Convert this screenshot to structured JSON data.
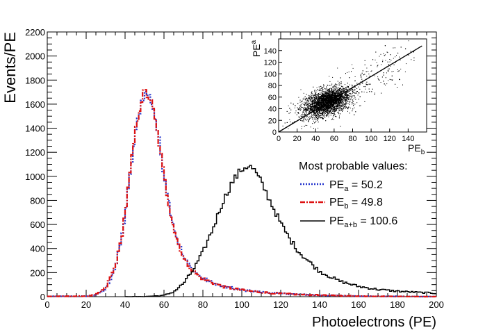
{
  "chart_data": [
    {
      "type": "line",
      "title": "",
      "xlabel": "Photoelectrons (PE)",
      "ylabel": "Events/PE",
      "xlim": [
        0,
        200
      ],
      "ylim": [
        0,
        2200
      ],
      "x_ticks": [
        "0",
        "20",
        "40",
        "60",
        "80",
        "100",
        "120",
        "140",
        "160",
        "180",
        "200"
      ],
      "y_ticks": [
        "0",
        "200",
        "400",
        "600",
        "800",
        "1000",
        "1200",
        "1400",
        "1600",
        "1800",
        "2000",
        "2200"
      ],
      "x": [
        0,
        20,
        25,
        30,
        35,
        38,
        40,
        42,
        44,
        46,
        48,
        50,
        52,
        54,
        56,
        58,
        60,
        63,
        66,
        70,
        75,
        80,
        90,
        100,
        110,
        120,
        130,
        140,
        150,
        160,
        170,
        180,
        190,
        200
      ],
      "series": [
        {
          "name": "PE_a = 50.2",
          "color": "#2233cc",
          "style": "dotted",
          "values": [
            2,
            4,
            12,
            65,
            240,
            460,
            680,
            930,
            1190,
            1420,
            1600,
            1690,
            1680,
            1600,
            1440,
            1240,
            1020,
            740,
            520,
            330,
            215,
            150,
            85,
            55,
            38,
            26,
            18,
            12,
            8,
            5,
            3,
            2,
            1,
            0
          ]
        },
        {
          "name": "PE_b = 49.8",
          "color": "#dd1111",
          "style": "dashdot",
          "values": [
            2,
            4,
            14,
            70,
            250,
            470,
            700,
            950,
            1210,
            1440,
            1620,
            1700,
            1670,
            1580,
            1420,
            1220,
            1000,
            720,
            505,
            320,
            210,
            148,
            84,
            54,
            37,
            25,
            17,
            12,
            8,
            5,
            3,
            2,
            1,
            0
          ]
        },
        {
          "name": "PE_a+b = 100.6",
          "color": "#000000",
          "style": "solid",
          "x": [
            40,
            50,
            60,
            65,
            70,
            75,
            80,
            85,
            90,
            95,
            100,
            103,
            106,
            110,
            115,
            120,
            125,
            130,
            140,
            150,
            160,
            170,
            180,
            190,
            200
          ],
          "values": [
            0,
            1,
            10,
            40,
            110,
            220,
            370,
            560,
            780,
            950,
            1060,
            1090,
            1060,
            950,
            780,
            610,
            470,
            360,
            210,
            130,
            85,
            60,
            45,
            36,
            28
          ]
        }
      ],
      "legend": {
        "position": "right",
        "header": "Most probable values:",
        "entries": [
          {
            "base": "PE",
            "sub": "a",
            "value": " = 50.2"
          },
          {
            "base": "PE",
            "sub": "b",
            "value": " = 49.8"
          },
          {
            "base": "PE",
            "sub": "a+b",
            "value": " = 100.6"
          }
        ]
      }
    },
    {
      "type": "scatter",
      "title": "",
      "xlabel": {
        "base": "PE",
        "sub": "b"
      },
      "ylabel": {
        "base": "PE",
        "sub": "a"
      },
      "xlim": [
        0,
        160
      ],
      "ylim": [
        0,
        160
      ],
      "x_ticks": [
        "0",
        "20",
        "40",
        "60",
        "80",
        "100",
        "120",
        "140"
      ],
      "y_ticks": [
        "0",
        "20",
        "40",
        "60",
        "80",
        "100",
        "120",
        "140"
      ],
      "cluster": {
        "center_x": 52,
        "center_y": 52,
        "spread_x": 12,
        "spread_y": 12,
        "correlation": 0.45
      },
      "fit_line": {
        "x": [
          0,
          155
        ],
        "y": [
          0,
          148
        ]
      }
    }
  ]
}
